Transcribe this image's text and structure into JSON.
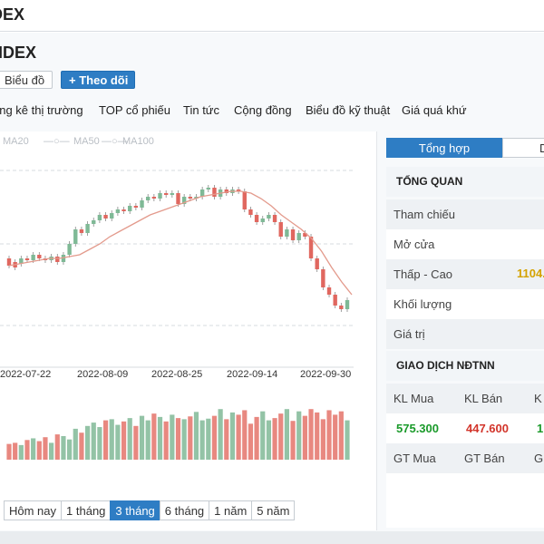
{
  "app": {
    "title": "DEX"
  },
  "page": {
    "title": "NDEX"
  },
  "buttons": {
    "chart_label": "Biểu đồ",
    "chart_icon": "chevron-left",
    "follow_label": "+ Theo dõi"
  },
  "tabs": [
    {
      "label": "ống kê thị trường"
    },
    {
      "label": "TOP cổ phiếu"
    },
    {
      "label": "Tin tức"
    },
    {
      "label": "Cộng đồng"
    },
    {
      "label": "Biểu đồ kỹ thuật"
    },
    {
      "label": "Giá quá khứ"
    }
  ],
  "legend": [
    {
      "label": "MA20"
    },
    {
      "label": "MA50"
    },
    {
      "label": "MA100"
    }
  ],
  "chart_data": {
    "type": "candlestick",
    "x_labels": [
      "2022-07-22",
      "2022-08-09",
      "2022-08-25",
      "2022-09-14",
      "2022-09-30"
    ],
    "colors": {
      "up": "#7fb996",
      "down": "#e0675f",
      "ma": "#e39a8c",
      "volume_up": "#93c3a6",
      "volume_down": "#e88880"
    },
    "candles": [
      [
        0.5,
        0.46
      ],
      [
        0.48,
        0.45
      ],
      [
        0.47,
        0.5
      ],
      [
        0.5,
        0.49
      ],
      [
        0.49,
        0.52
      ],
      [
        0.52,
        0.5
      ],
      [
        0.5,
        0.49
      ],
      [
        0.49,
        0.51
      ],
      [
        0.51,
        0.48
      ],
      [
        0.48,
        0.52
      ],
      [
        0.52,
        0.58
      ],
      [
        0.58,
        0.66
      ],
      [
        0.66,
        0.64
      ],
      [
        0.64,
        0.69
      ],
      [
        0.69,
        0.71
      ],
      [
        0.71,
        0.74
      ],
      [
        0.74,
        0.72
      ],
      [
        0.72,
        0.75
      ],
      [
        0.75,
        0.77
      ],
      [
        0.77,
        0.76
      ],
      [
        0.76,
        0.79
      ],
      [
        0.79,
        0.78
      ],
      [
        0.78,
        0.82
      ],
      [
        0.82,
        0.84
      ],
      [
        0.84,
        0.83
      ],
      [
        0.83,
        0.86
      ],
      [
        0.86,
        0.85
      ],
      [
        0.85,
        0.86
      ],
      [
        0.86,
        0.8
      ],
      [
        0.8,
        0.84
      ],
      [
        0.84,
        0.83
      ],
      [
        0.83,
        0.84
      ],
      [
        0.84,
        0.88
      ],
      [
        0.88,
        0.89
      ],
      [
        0.89,
        0.84
      ],
      [
        0.84,
        0.88
      ],
      [
        0.88,
        0.86
      ],
      [
        0.86,
        0.88
      ],
      [
        0.88,
        0.87
      ],
      [
        0.87,
        0.77
      ],
      [
        0.77,
        0.74
      ],
      [
        0.74,
        0.7
      ],
      [
        0.7,
        0.72
      ],
      [
        0.72,
        0.74
      ],
      [
        0.74,
        0.7
      ],
      [
        0.7,
        0.62
      ],
      [
        0.62,
        0.66
      ],
      [
        0.66,
        0.6
      ],
      [
        0.6,
        0.64
      ],
      [
        0.64,
        0.62
      ],
      [
        0.62,
        0.5
      ],
      [
        0.5,
        0.44
      ],
      [
        0.44,
        0.34
      ],
      [
        0.34,
        0.3
      ],
      [
        0.3,
        0.24
      ],
      [
        0.24,
        0.22
      ],
      [
        0.22,
        0.27
      ]
    ],
    "ma": [
      0.46,
      0.47,
      0.48,
      0.49,
      0.5,
      0.5,
      0.51,
      0.52,
      0.55,
      0.58,
      0.62,
      0.65,
      0.68,
      0.71,
      0.74,
      0.76,
      0.78,
      0.8,
      0.82,
      0.84,
      0.85,
      0.86,
      0.87,
      0.87,
      0.86,
      0.83,
      0.79,
      0.74,
      0.7,
      0.66,
      0.61,
      0.54,
      0.45,
      0.37,
      0.3
    ],
    "volume": [
      0.28,
      0.3,
      0.26,
      0.35,
      0.38,
      0.33,
      0.4,
      0.3,
      0.45,
      0.42,
      0.36,
      0.55,
      0.48,
      0.6,
      0.66,
      0.58,
      0.7,
      0.72,
      0.62,
      0.68,
      0.74,
      0.6,
      0.78,
      0.7,
      0.82,
      0.76,
      0.68,
      0.8,
      0.74,
      0.72,
      0.77,
      0.85,
      0.7,
      0.73,
      0.78,
      0.9,
      0.72,
      0.84,
      0.8,
      0.88,
      0.64,
      0.76,
      0.86,
      0.7,
      0.74,
      0.82,
      0.9,
      0.69,
      0.86,
      0.78,
      0.9,
      0.84,
      0.72,
      0.88,
      0.8,
      0.86,
      0.7
    ]
  },
  "ranges": [
    {
      "label": "Hôm nay",
      "active": false
    },
    {
      "label": "1 tháng",
      "active": false
    },
    {
      "label": "3 tháng",
      "active": true
    },
    {
      "label": "6 tháng",
      "active": false
    },
    {
      "label": "1 năm",
      "active": false
    },
    {
      "label": "5 năm",
      "active": false
    }
  ],
  "side": {
    "tab_active": "Tổng hợp",
    "tab_other": "D",
    "overview_title": "TỔNG QUAN",
    "rows": [
      {
        "label": "Tham chiếu"
      },
      {
        "label": "Mở cửa"
      },
      {
        "label": "Thấp - Cao",
        "value": "1104."
      },
      {
        "label": "Khối lượng"
      },
      {
        "label": "Giá trị"
      }
    ],
    "ndtnn_title": "GIAO DỊCH NĐTNN",
    "ndtnn_headers": [
      "KL Mua",
      "KL Bán",
      "K"
    ],
    "ndtnn_values": [
      "575.300",
      "447.600",
      "1"
    ],
    "ndtnn_headers2": [
      "GT Mua",
      "GT Bán",
      "G"
    ],
    "colors": {
      "buy": "#1a9a2a",
      "sell": "#d2342a"
    }
  }
}
